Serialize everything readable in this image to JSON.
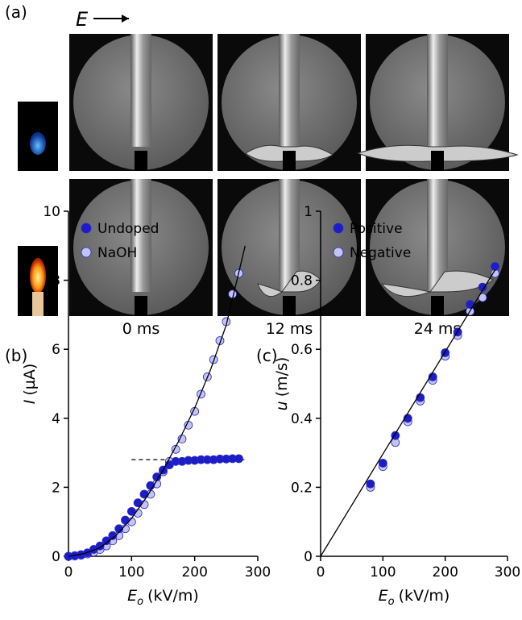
{
  "panel_labels": [
    "(a)",
    "(b)",
    "(c)"
  ],
  "field_label": "E",
  "time_labels": [
    "0 ms",
    "12 ms",
    "24 ms"
  ],
  "chart_data": [
    {
      "type": "scatter",
      "x_label": "E",
      "x_label_sub": "o",
      "x_label_unit": "(kV/m)",
      "y_label": "I",
      "y_label_unit": "(µA)",
      "xlim": [
        0,
        300
      ],
      "xticks": [
        0,
        100,
        200,
        300
      ],
      "ylim": [
        0,
        10
      ],
      "yticks": [
        0,
        2,
        4,
        6,
        8,
        10
      ],
      "legend": "upper left",
      "x": [
        0,
        10,
        20,
        30,
        40,
        50,
        60,
        70,
        80,
        90,
        100,
        110,
        120,
        130,
        140,
        150,
        160,
        170,
        180,
        190,
        200,
        210,
        220,
        230,
        240,
        250,
        260,
        270
      ],
      "series": [
        {
          "name": "Undoped",
          "color": "#1c1cc8",
          "values": [
            0,
            0.02,
            0.05,
            0.1,
            0.2,
            0.3,
            0.45,
            0.6,
            0.8,
            1.05,
            1.3,
            1.55,
            1.8,
            2.05,
            2.3,
            2.5,
            2.65,
            2.75,
            2.75,
            2.78,
            2.78,
            2.8,
            2.8,
            2.8,
            2.82,
            2.82,
            2.83,
            2.83
          ]
        },
        {
          "name": "NaOH",
          "color": "#c4c4f2",
          "values": [
            0,
            0.01,
            0.03,
            0.07,
            0.12,
            0.2,
            0.3,
            0.45,
            0.6,
            0.8,
            1.0,
            1.25,
            1.5,
            1.8,
            2.1,
            2.45,
            2.75,
            3.1,
            3.4,
            3.8,
            4.2,
            4.7,
            5.2,
            5.7,
            6.25,
            6.8,
            7.6,
            8.2
          ]
        }
      ],
      "fit": {
        "x": [
          0,
          25,
          50,
          75,
          100,
          125,
          150,
          175,
          200,
          225,
          250,
          280
        ],
        "values": [
          0,
          0.08,
          0.25,
          0.6,
          1.1,
          1.75,
          2.5,
          3.35,
          4.3,
          5.4,
          6.7,
          9
        ]
      },
      "reference_line": {
        "x": [
          100,
          280
        ],
        "values": [
          2.8,
          2.8
        ]
      }
    },
    {
      "type": "scatter",
      "x_label": "E",
      "x_label_sub": "o",
      "x_label_unit": "(kV/m)",
      "y_label": "u",
      "y_label_unit": "(m/s)",
      "xlim": [
        0,
        300
      ],
      "xticks": [
        0,
        100,
        200,
        300
      ],
      "ylim": [
        0,
        1
      ],
      "yticks": [
        0,
        0.2,
        0.4,
        0.6,
        0.8,
        1
      ],
      "legend": "upper left",
      "x": [
        80,
        100,
        120,
        140,
        160,
        180,
        200,
        220,
        240,
        260,
        280
      ],
      "series": [
        {
          "name": "Positive",
          "color": "#1c1cc8",
          "values": [
            0.21,
            0.27,
            0.35,
            0.4,
            0.46,
            0.52,
            0.59,
            0.65,
            0.73,
            0.78,
            0.84
          ]
        },
        {
          "name": "Negative",
          "color": "#c4c4f2",
          "values": [
            0.2,
            0.26,
            0.33,
            0.39,
            0.45,
            0.51,
            0.58,
            0.64,
            0.71,
            0.75,
            0.82
          ]
        }
      ],
      "fit": {
        "x": [
          0,
          280
        ],
        "values": [
          0,
          0.83
        ]
      }
    }
  ]
}
